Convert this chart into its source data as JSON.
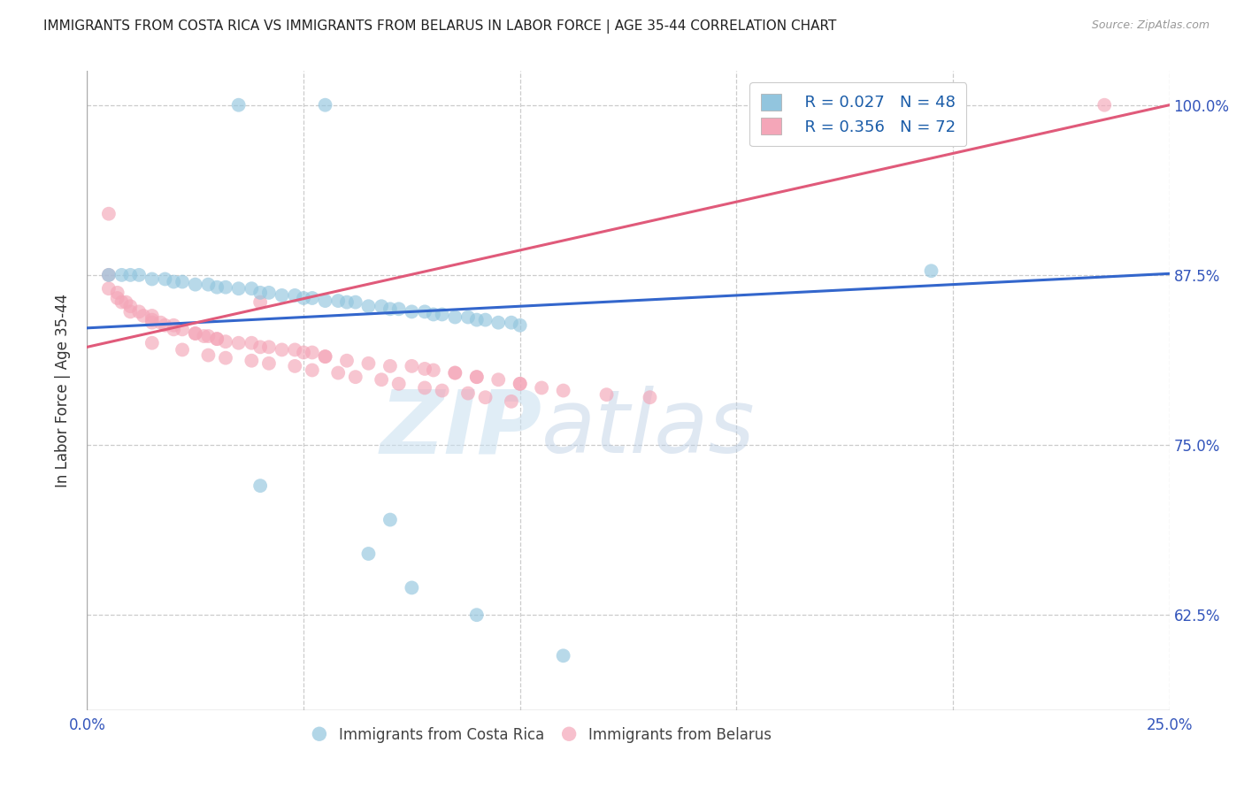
{
  "title": "IMMIGRANTS FROM COSTA RICA VS IMMIGRANTS FROM BELARUS IN LABOR FORCE | AGE 35-44 CORRELATION CHART",
  "source": "Source: ZipAtlas.com",
  "ylabel": "In Labor Force | Age 35-44",
  "xlim": [
    0.0,
    0.25
  ],
  "ylim": [
    0.555,
    1.025
  ],
  "xticks": [
    0.0,
    0.05,
    0.1,
    0.15,
    0.2,
    0.25
  ],
  "xticklabels": [
    "0.0%",
    "",
    "",
    "",
    "",
    "25.0%"
  ],
  "yticks": [
    0.625,
    0.75,
    0.875,
    1.0
  ],
  "yticklabels": [
    "62.5%",
    "75.0%",
    "87.5%",
    "100.0%"
  ],
  "legend_r1": "R = 0.027",
  "legend_n1": "N = 48",
  "legend_r2": "R = 0.356",
  "legend_n2": "N = 72",
  "blue_color": "#92c5de",
  "pink_color": "#f4a6b8",
  "blue_line_color": "#3366cc",
  "pink_line_color": "#e05a7a",
  "watermark_zip": "ZIP",
  "watermark_atlas": "atlas",
  "blue_scatter_x": [
    0.035,
    0.055,
    0.005,
    0.008,
    0.01,
    0.012,
    0.015,
    0.018,
    0.02,
    0.022,
    0.025,
    0.028,
    0.03,
    0.032,
    0.035,
    0.038,
    0.04,
    0.042,
    0.045,
    0.048,
    0.05,
    0.052,
    0.055,
    0.058,
    0.06,
    0.062,
    0.065,
    0.068,
    0.07,
    0.072,
    0.075,
    0.078,
    0.08,
    0.082,
    0.085,
    0.088,
    0.09,
    0.092,
    0.095,
    0.098,
    0.1,
    0.195,
    0.04,
    0.07,
    0.065,
    0.075,
    0.09,
    0.11
  ],
  "blue_scatter_y": [
    1.0,
    1.0,
    0.875,
    0.875,
    0.875,
    0.875,
    0.872,
    0.872,
    0.87,
    0.87,
    0.868,
    0.868,
    0.866,
    0.866,
    0.865,
    0.865,
    0.862,
    0.862,
    0.86,
    0.86,
    0.858,
    0.858,
    0.856,
    0.856,
    0.855,
    0.855,
    0.852,
    0.852,
    0.85,
    0.85,
    0.848,
    0.848,
    0.846,
    0.846,
    0.844,
    0.844,
    0.842,
    0.842,
    0.84,
    0.84,
    0.838,
    0.878,
    0.72,
    0.695,
    0.67,
    0.645,
    0.625,
    0.595
  ],
  "pink_scatter_x": [
    0.005,
    0.005,
    0.005,
    0.007,
    0.007,
    0.008,
    0.009,
    0.01,
    0.01,
    0.012,
    0.013,
    0.015,
    0.015,
    0.015,
    0.017,
    0.018,
    0.02,
    0.02,
    0.022,
    0.025,
    0.025,
    0.027,
    0.028,
    0.03,
    0.03,
    0.032,
    0.035,
    0.038,
    0.04,
    0.042,
    0.045,
    0.048,
    0.05,
    0.052,
    0.055,
    0.055,
    0.06,
    0.065,
    0.07,
    0.075,
    0.078,
    0.08,
    0.085,
    0.085,
    0.09,
    0.09,
    0.095,
    0.1,
    0.1,
    0.105,
    0.11,
    0.12,
    0.13,
    0.015,
    0.022,
    0.028,
    0.032,
    0.038,
    0.042,
    0.048,
    0.052,
    0.058,
    0.062,
    0.068,
    0.072,
    0.078,
    0.082,
    0.088,
    0.092,
    0.098,
    0.235,
    0.04
  ],
  "pink_scatter_y": [
    0.92,
    0.875,
    0.865,
    0.862,
    0.858,
    0.855,
    0.855,
    0.852,
    0.848,
    0.848,
    0.845,
    0.845,
    0.842,
    0.84,
    0.84,
    0.838,
    0.838,
    0.835,
    0.835,
    0.832,
    0.832,
    0.83,
    0.83,
    0.828,
    0.828,
    0.826,
    0.825,
    0.825,
    0.822,
    0.822,
    0.82,
    0.82,
    0.818,
    0.818,
    0.815,
    0.815,
    0.812,
    0.81,
    0.808,
    0.808,
    0.806,
    0.805,
    0.803,
    0.803,
    0.8,
    0.8,
    0.798,
    0.795,
    0.795,
    0.792,
    0.79,
    0.787,
    0.785,
    0.825,
    0.82,
    0.816,
    0.814,
    0.812,
    0.81,
    0.808,
    0.805,
    0.803,
    0.8,
    0.798,
    0.795,
    0.792,
    0.79,
    0.788,
    0.785,
    0.782,
    1.0,
    0.855
  ],
  "blue_trend_x": [
    0.0,
    0.25
  ],
  "blue_trend_y": [
    0.836,
    0.876
  ],
  "pink_trend_x": [
    0.0,
    0.25
  ],
  "pink_trend_y": [
    0.822,
    1.0
  ]
}
